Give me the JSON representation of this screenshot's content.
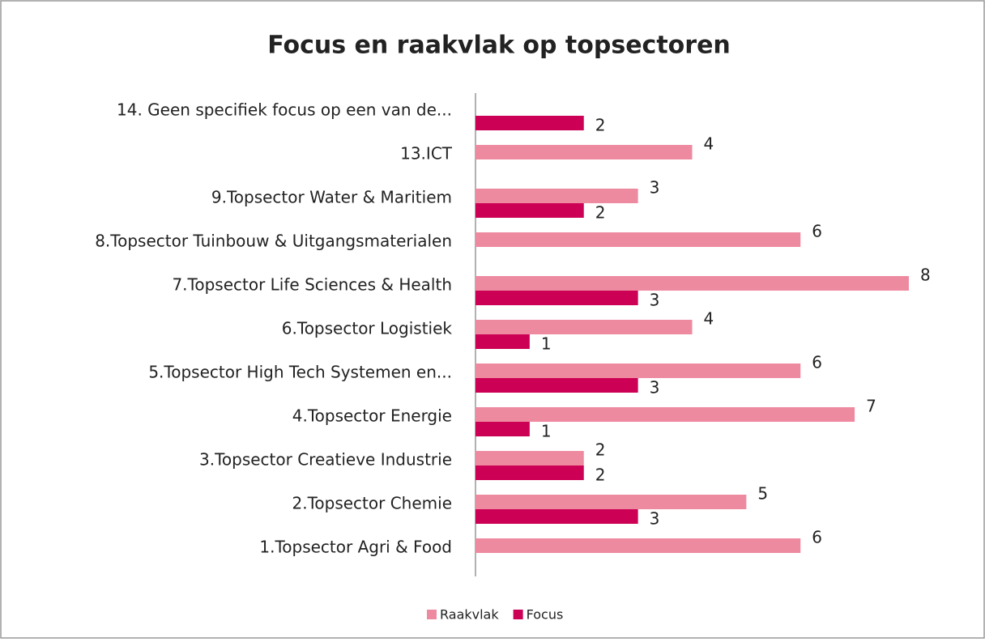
{
  "chart_data": {
    "type": "bar",
    "orientation": "horizontal",
    "title": "Focus en raakvlak op topsectoren",
    "categories": [
      "14. Geen specifiek focus op een van de...",
      "13.ICT",
      "9.Topsector Water & Maritiem",
      "8.Topsector Tuinbouw & Uitgangsmaterialen",
      "7.Topsector Life Sciences & Health",
      "6.Topsector Logistiek",
      "5.Topsector High Tech Systemen en...",
      "4.Topsector Energie",
      "3.Topsector Creatieve Industrie",
      "2.Topsector Chemie",
      "1.Topsector Agri & Food"
    ],
    "series": [
      {
        "name": "Raakvlak",
        "color": "#ee8aa0",
        "values": [
          null,
          4,
          3,
          6,
          8,
          4,
          6,
          7,
          2,
          5,
          6
        ]
      },
      {
        "name": "Focus",
        "color": "#cc0055",
        "values": [
          2,
          null,
          2,
          null,
          3,
          1,
          3,
          1,
          2,
          3,
          null
        ]
      }
    ],
    "legend": "bottom"
  }
}
